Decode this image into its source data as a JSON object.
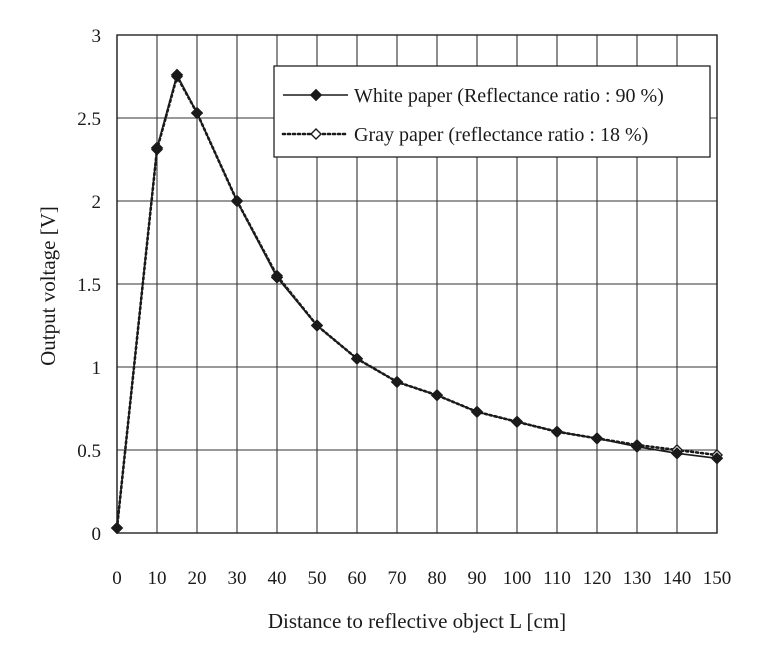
{
  "chart_data": {
    "type": "line",
    "xlabel": "Distance to reflective object L [cm]",
    "ylabel": "Output voltage [V]",
    "xlim": [
      0,
      150
    ],
    "ylim": [
      0,
      3
    ],
    "x_ticks": [
      "0",
      "10",
      "20",
      "30",
      "40",
      "50",
      "60",
      "70",
      "80",
      "90",
      "100",
      "110",
      "120",
      "130",
      "140",
      "150"
    ],
    "y_ticks": [
      "0",
      "0.5",
      "1",
      "1.5",
      "2",
      "2.5",
      "3"
    ],
    "grid": true,
    "legend_position": "top-right",
    "x": [
      0,
      10,
      15,
      20,
      30,
      40,
      50,
      60,
      70,
      80,
      90,
      100,
      110,
      120,
      130,
      140,
      150
    ],
    "series": [
      {
        "name": "White paper (Reflectance ratio : 90 %)",
        "values": [
          0.03,
          2.32,
          2.76,
          2.53,
          2.0,
          1.54,
          1.25,
          1.05,
          0.91,
          0.83,
          0.73,
          0.67,
          0.61,
          0.57,
          0.52,
          0.48,
          0.45
        ],
        "line_style": "solid",
        "marker": "filled-diamond",
        "color": "#1a1a1a"
      },
      {
        "name": "Gray paper (reflectance ratio : 18 %)",
        "values": [
          0.03,
          2.31,
          2.75,
          2.53,
          2.0,
          1.55,
          1.25,
          1.05,
          0.91,
          0.83,
          0.73,
          0.67,
          0.61,
          0.57,
          0.53,
          0.5,
          0.47
        ],
        "line_style": "dotted",
        "marker": "open-diamond",
        "color": "#1a1a1a"
      }
    ]
  }
}
